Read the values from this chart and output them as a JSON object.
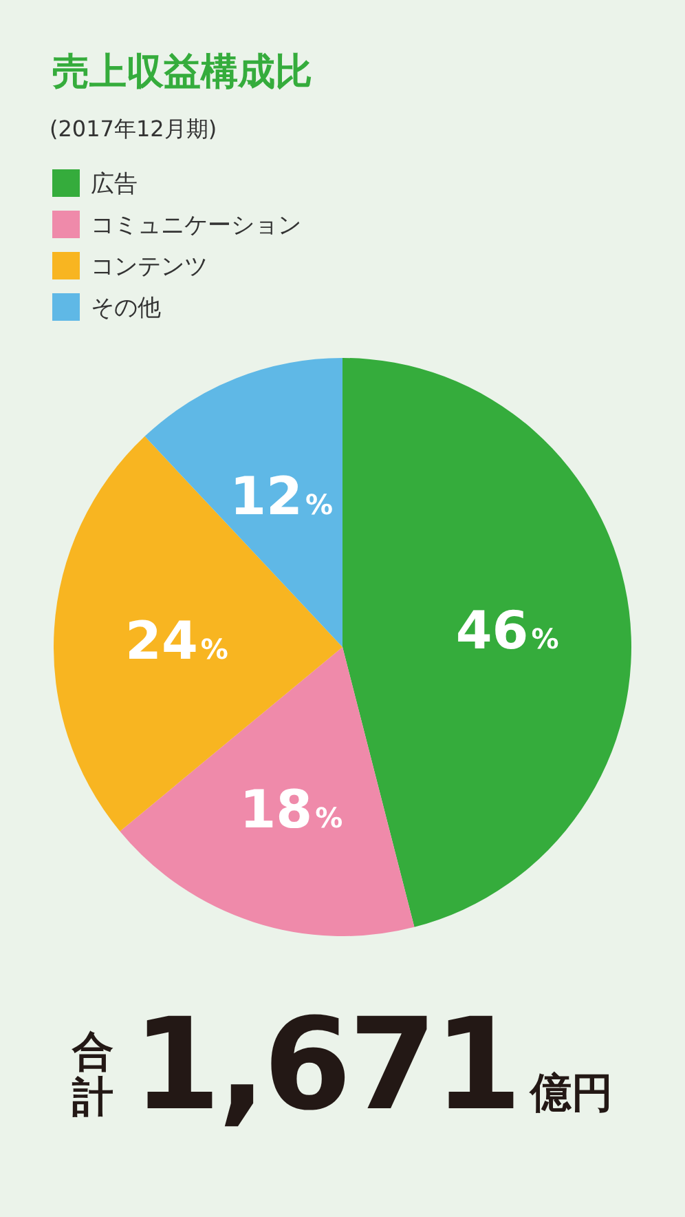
{
  "chart_data": {
    "type": "pie",
    "title": "売上収益構成比",
    "subtitle": "(2017年12月期)",
    "categories": [
      "広告",
      "コミュニケーション",
      "コンテンツ",
      "その他"
    ],
    "values": [
      46,
      18,
      24,
      12
    ],
    "colors": [
      "#35ac3c",
      "#ef8aaa",
      "#f8b521",
      "#5fb8e6"
    ],
    "value_labels": [
      "46%",
      "18%",
      "24%",
      "12%"
    ],
    "legend": "top left",
    "annotations": [
      "合計",
      "1,671",
      "億円"
    ]
  }
}
